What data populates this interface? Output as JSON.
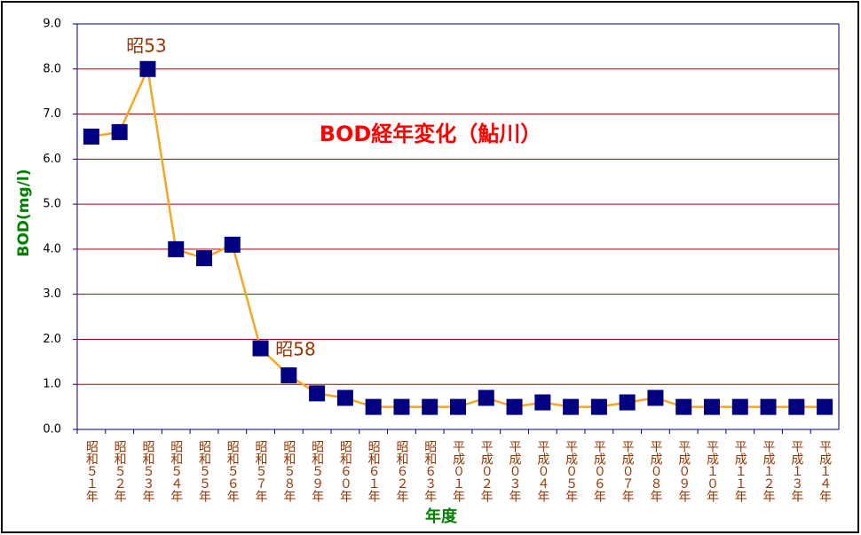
{
  "chart_data": {
    "type": "line",
    "title": "BOD経年変化（鮎川）",
    "y_label": "BOD(mg/l)",
    "x_label": "年度",
    "annotations": [
      "昭53",
      "昭58"
    ],
    "categories": [
      "昭和５１年",
      "昭和５２年",
      "昭和５３年",
      "昭和５４年",
      "昭和５５年",
      "昭和５６年",
      "昭和５７年",
      "昭和５８年",
      "昭和５９年",
      "昭和６０年",
      "昭和６１年",
      "昭和６２年",
      "昭和６３年",
      "平成０１年",
      "平成０２年",
      "平成０３年",
      "平成０４年",
      "平成０５年",
      "平成０６年",
      "平成０７年",
      "平成０８年",
      "平成０９年",
      "平成１０年",
      "平成１１年",
      "平成１２年",
      "平成１３年",
      "平成１４年"
    ],
    "series": [
      {
        "name": "BOD",
        "line_color": "#f5a623",
        "color": "#000080",
        "values": [
          6.5,
          6.6,
          8.0,
          4.0,
          3.8,
          4.1,
          1.8,
          1.2,
          0.8,
          0.7,
          0.5,
          0.5,
          0.5,
          0.5,
          0.7,
          0.5,
          0.6,
          0.5,
          0.5,
          0.6,
          0.7,
          0.5,
          0.5,
          0.5,
          0.5,
          0.5,
          0.5
        ]
      }
    ],
    "ylim": [
      0,
      9
    ],
    "yticks": [
      {
        "value": 0,
        "label": "0.0"
      },
      {
        "value": 1,
        "label": "1.0"
      },
      {
        "value": 2,
        "label": "2.0"
      },
      {
        "value": 3,
        "label": "3.0"
      },
      {
        "value": 4,
        "label": "4.0"
      },
      {
        "value": 5,
        "label": "5.0"
      },
      {
        "value": 6,
        "label": "6.0"
      },
      {
        "value": 7,
        "label": "7.0"
      },
      {
        "value": 8,
        "label": "8.0"
      },
      {
        "value": 9,
        "label": "9.0"
      }
    ],
    "grid": true
  }
}
